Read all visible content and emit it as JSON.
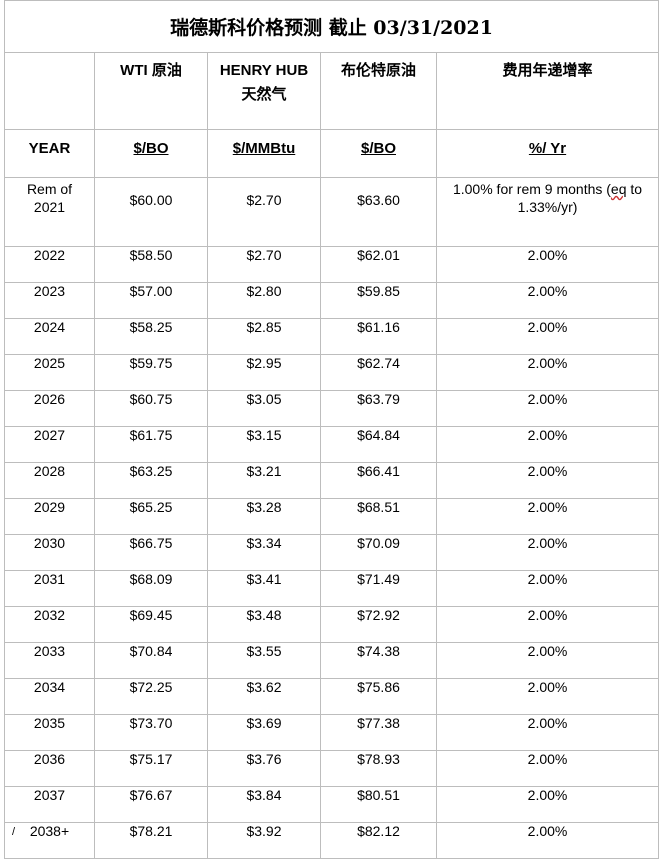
{
  "title": "瑞德斯科价格预测  截止 03/31/2021",
  "headers": {
    "year": "",
    "wti": "WTI  原油",
    "henry_line1": "HENRY HUB",
    "henry_line2": "天然气",
    "brent": "布伦特原油",
    "rate": "费用年递增率"
  },
  "units": {
    "year": "YEAR",
    "wti": "$/BO",
    "henry": "$/MMBtu",
    "brent": "$/BO",
    "rate": "%/ Yr"
  },
  "rem_row": {
    "year_line1": "Rem of",
    "year_line2": "2021",
    "wti": "$60.00",
    "henry": "$2.70",
    "brent": "$63.60",
    "rate_part1": "1.00% for rem 9 months (",
    "rate_wavy": "eq",
    "rate_part2": " to",
    "rate_line2": "1.33%/yr)"
  },
  "rows": [
    {
      "year": "2022",
      "wti": "$58.50",
      "henry": "$2.70",
      "brent": "$62.01",
      "rate": "2.00%"
    },
    {
      "year": "2023",
      "wti": "$57.00",
      "henry": "$2.80",
      "brent": "$59.85",
      "rate": "2.00%"
    },
    {
      "year": "2024",
      "wti": "$58.25",
      "henry": "$2.85",
      "brent": "$61.16",
      "rate": "2.00%"
    },
    {
      "year": "2025",
      "wti": "$59.75",
      "henry": "$2.95",
      "brent": "$62.74",
      "rate": "2.00%"
    },
    {
      "year": "2026",
      "wti": "$60.75",
      "henry": "$3.05",
      "brent": "$63.79",
      "rate": "2.00%"
    },
    {
      "year": "2027",
      "wti": "$61.75",
      "henry": "$3.15",
      "brent": "$64.84",
      "rate": "2.00%"
    },
    {
      "year": "2028",
      "wti": "$63.25",
      "henry": "$3.21",
      "brent": "$66.41",
      "rate": "2.00%"
    },
    {
      "year": "2029",
      "wti": "$65.25",
      "henry": "$3.28",
      "brent": "$68.51",
      "rate": "2.00%"
    },
    {
      "year": "2030",
      "wti": "$66.75",
      "henry": "$3.34",
      "brent": "$70.09",
      "rate": "2.00%"
    },
    {
      "year": "2031",
      "wti": "$68.09",
      "henry": "$3.41",
      "brent": "$71.49",
      "rate": "2.00%"
    },
    {
      "year": "2032",
      "wti": "$69.45",
      "henry": "$3.48",
      "brent": "$72.92",
      "rate": "2.00%"
    },
    {
      "year": "2033",
      "wti": "$70.84",
      "henry": "$3.55",
      "brent": "$74.38",
      "rate": "2.00%"
    },
    {
      "year": "2034",
      "wti": "$72.25",
      "henry": "$3.62",
      "brent": "$75.86",
      "rate": "2.00%"
    },
    {
      "year": "2035",
      "wti": "$73.70",
      "henry": "$3.69",
      "brent": "$77.38",
      "rate": "2.00%"
    },
    {
      "year": "2036",
      "wti": "$75.17",
      "henry": "$3.76",
      "brent": "$78.93",
      "rate": "2.00%"
    },
    {
      "year": "2037",
      "wti": "$76.67",
      "henry": "$3.84",
      "brent": "$80.51",
      "rate": "2.00%"
    },
    {
      "year": "2038+",
      "wti": "$78.21",
      "henry": "$3.92",
      "brent": "$82.12",
      "rate": "2.00%"
    }
  ],
  "cursor_mark": "/"
}
